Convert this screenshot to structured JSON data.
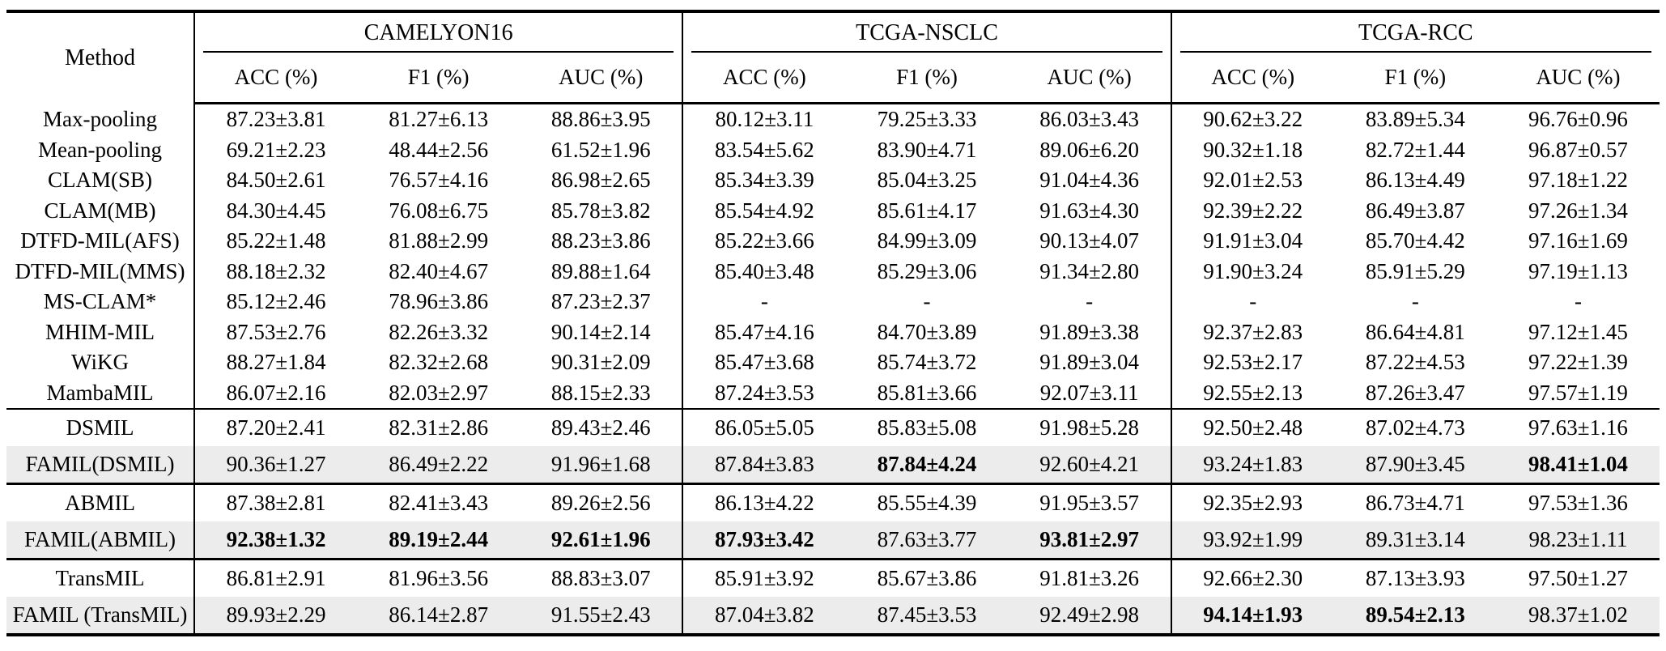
{
  "table": {
    "method_header": "Method",
    "groups": [
      {
        "label": "CAMELYON16"
      },
      {
        "label": "TCGA-NSCLC"
      },
      {
        "label": "TCGA-RCC"
      }
    ],
    "sub_headers": [
      "ACC (%)",
      "F1 (%)",
      "AUC (%)"
    ],
    "highlight_color": "#ececec",
    "sections": [
      {
        "rows": [
          {
            "method": "Max-pooling",
            "highlight": false,
            "bold": [],
            "values": [
              "87.23±3.81",
              "81.27±6.13",
              "88.86±3.95",
              "80.12±3.11",
              "79.25±3.33",
              "86.03±3.43",
              "90.62±3.22",
              "83.89±5.34",
              "96.76±0.96"
            ]
          },
          {
            "method": "Mean-pooling",
            "highlight": false,
            "bold": [],
            "values": [
              "69.21±2.23",
              "48.44±2.56",
              "61.52±1.96",
              "83.54±5.62",
              "83.90±4.71",
              "89.06±6.20",
              "90.32±1.18",
              "82.72±1.44",
              "96.87±0.57"
            ]
          },
          {
            "method": "CLAM(SB)",
            "highlight": false,
            "bold": [],
            "values": [
              "84.50±2.61",
              "76.57±4.16",
              "86.98±2.65",
              "85.34±3.39",
              "85.04±3.25",
              "91.04±4.36",
              "92.01±2.53",
              "86.13±4.49",
              "97.18±1.22"
            ]
          },
          {
            "method": "CLAM(MB)",
            "highlight": false,
            "bold": [],
            "values": [
              "84.30±4.45",
              "76.08±6.75",
              "85.78±3.82",
              "85.54±4.92",
              "85.61±4.17",
              "91.63±4.30",
              "92.39±2.22",
              "86.49±3.87",
              "97.26±1.34"
            ]
          },
          {
            "method": "DTFD-MIL(AFS)",
            "highlight": false,
            "bold": [],
            "values": [
              "85.22±1.48",
              "81.88±2.99",
              "88.23±3.86",
              "85.22±3.66",
              "84.99±3.09",
              "90.13±4.07",
              "91.91±3.04",
              "85.70±4.42",
              "97.16±1.69"
            ]
          },
          {
            "method": "DTFD-MIL(MMS)",
            "highlight": false,
            "bold": [],
            "values": [
              "88.18±2.32",
              "82.40±4.67",
              "89.88±1.64",
              "85.40±3.48",
              "85.29±3.06",
              "91.34±2.80",
              "91.90±3.24",
              "85.91±5.29",
              "97.19±1.13"
            ]
          },
          {
            "method": "MS-CLAM*",
            "highlight": false,
            "bold": [],
            "values": [
              "85.12±2.46",
              "78.96±3.86",
              "87.23±2.37",
              "-",
              "-",
              "-",
              "-",
              "-",
              "-"
            ]
          },
          {
            "method": "MHIM-MIL",
            "highlight": false,
            "bold": [],
            "values": [
              "87.53±2.76",
              "82.26±3.32",
              "90.14±2.14",
              "85.47±4.16",
              "84.70±3.89",
              "91.89±3.38",
              "92.37±2.83",
              "86.64±4.81",
              "97.12±1.45"
            ]
          },
          {
            "method": "WiKG",
            "highlight": false,
            "bold": [],
            "values": [
              "88.27±1.84",
              "82.32±2.68",
              "90.31±2.09",
              "85.47±3.68",
              "85.74±3.72",
              "91.89±3.04",
              "92.53±2.17",
              "87.22±4.53",
              "97.22±1.39"
            ]
          },
          {
            "method": "MambaMIL",
            "highlight": false,
            "bold": [],
            "values": [
              "86.07±2.16",
              "82.03±2.97",
              "88.15±2.33",
              "87.24±3.53",
              "85.81±3.66",
              "92.07±3.11",
              "92.55±2.13",
              "87.26±3.47",
              "97.57±1.19"
            ]
          }
        ]
      },
      {
        "rows": [
          {
            "method": "DSMIL",
            "highlight": false,
            "bold": [],
            "values": [
              "87.20±2.41",
              "82.31±2.86",
              "89.43±2.46",
              "86.05±5.05",
              "85.83±5.08",
              "91.98±5.28",
              "92.50±2.48",
              "87.02±4.73",
              "97.63±1.16"
            ]
          },
          {
            "method": "FAMIL(DSMIL)",
            "highlight": true,
            "bold": [
              4,
              8
            ],
            "values": [
              "90.36±1.27",
              "86.49±2.22",
              "91.96±1.68",
              "87.84±3.83",
              "87.84±4.24",
              "92.60±4.21",
              "93.24±1.83",
              "87.90±3.45",
              "98.41±1.04"
            ]
          }
        ]
      },
      {
        "rows": [
          {
            "method": "ABMIL",
            "highlight": false,
            "bold": [],
            "values": [
              "87.38±2.81",
              "82.41±3.43",
              "89.26±2.56",
              "86.13±4.22",
              "85.55±4.39",
              "91.95±3.57",
              "92.35±2.93",
              "86.73±4.71",
              "97.53±1.36"
            ]
          },
          {
            "method": "FAMIL(ABMIL)",
            "highlight": true,
            "bold": [
              0,
              1,
              2,
              3,
              5
            ],
            "values": [
              "92.38±1.32",
              "89.19±2.44",
              "92.61±1.96",
              "87.93±3.42",
              "87.63±3.77",
              "93.81±2.97",
              "93.92±1.99",
              "89.31±3.14",
              "98.23±1.11"
            ]
          }
        ]
      },
      {
        "rows": [
          {
            "method": "TransMIL",
            "highlight": false,
            "bold": [],
            "values": [
              "86.81±2.91",
              "81.96±3.56",
              "88.83±3.07",
              "85.91±3.92",
              "85.67±3.86",
              "91.81±3.26",
              "92.66±2.30",
              "87.13±3.93",
              "97.50±1.27"
            ]
          },
          {
            "method": "FAMIL (TransMIL)",
            "highlight": true,
            "bold": [
              6,
              7
            ],
            "values": [
              "89.93±2.29",
              "86.14±2.87",
              "91.55±2.43",
              "87.04±3.82",
              "87.45±3.53",
              "92.49±2.98",
              "94.14±1.93",
              "89.54±2.13",
              "98.37±1.02"
            ]
          }
        ]
      }
    ]
  }
}
